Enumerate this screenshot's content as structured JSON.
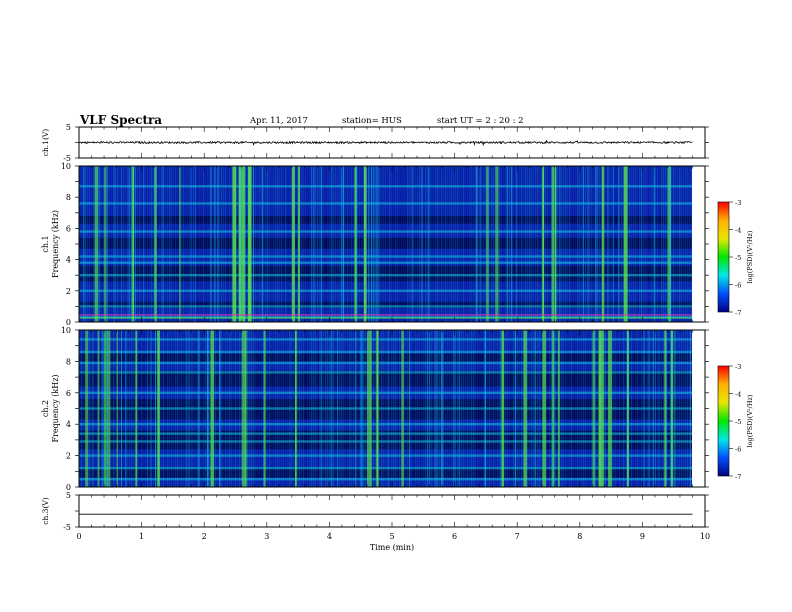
{
  "header": {
    "title": "VLF Spectra",
    "date": "Apr. 11, 2017",
    "station": "station= HUS",
    "start_ut": "start  UT =   2 : 20 : 2"
  },
  "chart_data": [
    {
      "type": "line",
      "panel": "ch1-waveform",
      "ylabel": "ch.1(V)",
      "ylim": [
        -5,
        5
      ],
      "yticks": [
        "5",
        "-5"
      ],
      "xlim": [
        0,
        10
      ],
      "series": [
        {
          "x": [
            0,
            9.8
          ],
          "y": [
            0,
            0
          ]
        }
      ],
      "note_amplitude": "noisy trace, approx ±0.3 V around 0"
    },
    {
      "type": "heatmap",
      "panel": "ch1-spectrogram",
      "ylabel": "ch.1 Frequency (kHz)",
      "ylim": [
        0,
        10
      ],
      "yticks": [
        "0",
        "2",
        "4",
        "6",
        "8",
        "10"
      ],
      "xlim": [
        0,
        9.8
      ],
      "colorbar": {
        "label": "log(PSD)(V²/Hz)",
        "range": [
          -7,
          -3
        ],
        "ticks": [
          "-3",
          "-4",
          "-5",
          "-6",
          "-7"
        ]
      },
      "bright_times_min": [
        0.25,
        0.4,
        0.85,
        1.2,
        1.6,
        2.45,
        2.55,
        2.6,
        2.7,
        3.4,
        3.5,
        4.4,
        4.55,
        6.5,
        6.65,
        7.4,
        7.55,
        7.6,
        8.35,
        8.7,
        9.4
      ],
      "bright_bands_khz": [
        0.3,
        1.0,
        2.0,
        3.0,
        3.8,
        4.2,
        5.8,
        7.6,
        8.7
      ]
    },
    {
      "type": "heatmap",
      "panel": "ch2-spectrogram",
      "ylabel": "ch.2 Frequency (kHz)",
      "ylim": [
        0,
        10
      ],
      "yticks": [
        "0",
        "2",
        "4",
        "6",
        "8",
        "10"
      ],
      "xlim": [
        0,
        9.8
      ],
      "colorbar": {
        "label": "log(PSD)(V²/Hz)",
        "range": [
          -7,
          -3
        ],
        "ticks": [
          "-3",
          "-4",
          "-5",
          "-6",
          "-7"
        ]
      },
      "bright_times_min": [
        0.1,
        0.3,
        0.4,
        0.45,
        0.6,
        0.9,
        1.25,
        2.1,
        2.6,
        2.65,
        2.95,
        3.45,
        4.6,
        4.65,
        4.75,
        5.15,
        6.75,
        7.1,
        7.4,
        7.55,
        7.65,
        8.2,
        8.3,
        8.35,
        8.45,
        8.75,
        9.35,
        9.45
      ],
      "bright_bands_khz": [
        0.5,
        1.2,
        2.0,
        2.9,
        3.4,
        4.0,
        5.0,
        6.0,
        7.3,
        7.9,
        8.6,
        9.4
      ]
    },
    {
      "type": "line",
      "panel": "ch3-waveform",
      "ylabel": "ch.3(V)",
      "ylim": [
        -5,
        5
      ],
      "yticks": [
        "5",
        "-5"
      ],
      "xlim": [
        0,
        10
      ],
      "series": [
        {
          "x": [
            0,
            9.8
          ],
          "y": [
            -1,
            -1
          ]
        }
      ]
    }
  ],
  "xaxis": {
    "label": "Time  (min)",
    "ticks": [
      "0",
      "1",
      "2",
      "3",
      "4",
      "5",
      "6",
      "7",
      "8",
      "9",
      "10"
    ]
  },
  "colors": {
    "spec_low": "#000040",
    "spec_base": "#0a1aa8",
    "spec_mid": "#14c8e6",
    "spec_high": "#5ae650",
    "colorbar": [
      "#ff0000",
      "#ffb000",
      "#e6e600",
      "#00e600",
      "#00e6e6",
      "#0050ff",
      "#000080"
    ]
  }
}
